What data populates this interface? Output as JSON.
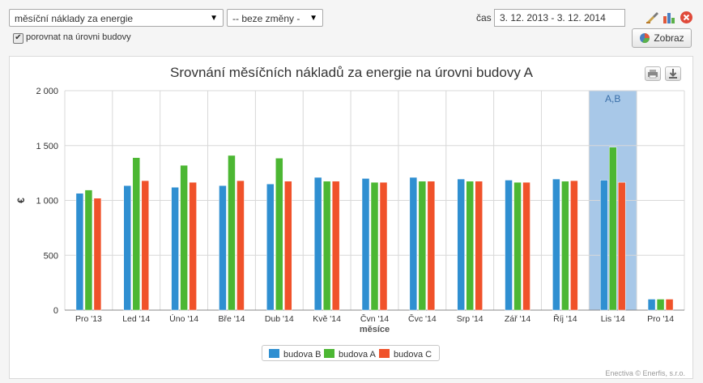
{
  "toolbar": {
    "metric_select": "měsíční náklady za energie",
    "change_select": "-- beze změny -",
    "compare_checkbox_label": "porovnat na úrovni budovy",
    "compare_checked": true,
    "time_label": "čas",
    "date_range": "3. 12. 2013 - 3. 12. 2014",
    "show_button": "Zobraz"
  },
  "chart_data": {
    "type": "bar",
    "title": "Srovnání měsíčních nákladů za energie na úrovni budovy A",
    "xlabel": "měsíce",
    "ylabel": "€",
    "ylim": [
      0,
      2000
    ],
    "yticks": [
      0,
      500,
      1000,
      1500,
      2000
    ],
    "ytick_labels": [
      "0",
      "500",
      "1 000",
      "1 500",
      "2 000"
    ],
    "categories": [
      "Pro '13",
      "Led '14",
      "Úno '14",
      "Bře '14",
      "Dub '14",
      "Kvě '14",
      "Čvn '14",
      "Čvc '14",
      "Srp '14",
      "Zář '14",
      "Říj '14",
      "Lis '14",
      "Pro '14"
    ],
    "series": [
      {
        "name": "budova B",
        "color": "#2f8fd1",
        "values": [
          1065,
          1135,
          1120,
          1135,
          1150,
          1210,
          1200,
          1210,
          1195,
          1185,
          1195,
          1185,
          100
        ]
      },
      {
        "name": "budova A",
        "color": "#4cb733",
        "values": [
          1095,
          1390,
          1320,
          1410,
          1385,
          1175,
          1165,
          1175,
          1175,
          1165,
          1175,
          1485,
          100
        ]
      },
      {
        "name": "budova C",
        "color": "#f0522a",
        "values": [
          1020,
          1180,
          1165,
          1180,
          1175,
          1175,
          1165,
          1175,
          1175,
          1165,
          1180,
          1165,
          100
        ]
      }
    ],
    "highlight": {
      "category": "Lis '14",
      "label": "A,B",
      "color": "#a8c8e8"
    },
    "legend_placement": "bottom-center",
    "grid": true
  },
  "footer": {
    "credit": "Enectiva © Enerfis, s.r.o."
  },
  "icons": {
    "export_print": "print-icon",
    "export_download": "download-icon",
    "settings": "paint-icon",
    "chart_type": "bar-chart-icon",
    "close": "close-icon",
    "zobraz": "pie-chart-icon"
  }
}
